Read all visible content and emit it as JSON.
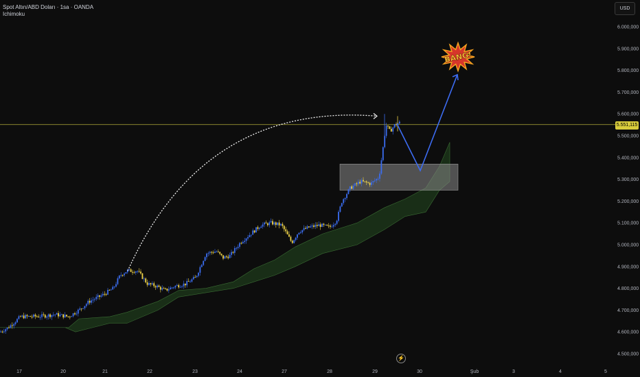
{
  "header": {
    "symbol_line": "Spot Altın/ABD Doları · 1sa · OANDA",
    "indicator": "Ichimoku"
  },
  "currency_button": "USD",
  "price_tag": "5.551,115",
  "clock_icon": "lightning-icon",
  "bang_text": "BANG!",
  "colors": {
    "background": "#0d0d0d",
    "candle_up": "#3b6df0",
    "candle_down": "#f0d54a",
    "cloud_fill": "#1d3a1b",
    "price_line": "#b5ae3a",
    "zone": "#8a8a8a",
    "projection": "#3d6cf2"
  },
  "chart_data": {
    "type": "candlestick",
    "y_axis": {
      "range": [
        4450000,
        6100000
      ],
      "ticks": [
        "6.000,000",
        "5.900,000",
        "5.800,000",
        "5.700,000",
        "5.600,000",
        "5.500,000",
        "5.400,000",
        "5.300,000",
        "5.200,000",
        "5.100,000",
        "5.000,000",
        "4.900,000",
        "4.800,000",
        "4.700,000",
        "4.600,000",
        "4.500,000"
      ]
    },
    "x_axis": {
      "ticks": [
        "17",
        "20",
        "21",
        "22",
        "23",
        "24",
        "27",
        "28",
        "29",
        "30",
        "Şub",
        "3",
        "4",
        "5"
      ]
    },
    "current_price": 5551115,
    "price_path": [
      [
        0,
        4600000
      ],
      [
        12,
        4620000
      ],
      [
        30,
        4670000
      ],
      [
        40,
        4670000
      ],
      [
        60,
        4672000
      ],
      [
        80,
        4680000
      ],
      [
        100,
        4670000
      ],
      [
        115,
        4700000
      ],
      [
        130,
        4740000
      ],
      [
        150,
        4770000
      ],
      [
        165,
        4800000
      ],
      [
        175,
        4860000
      ],
      [
        185,
        4880000
      ],
      [
        200,
        4880000
      ],
      [
        215,
        4820000
      ],
      [
        228,
        4810000
      ],
      [
        240,
        4790000
      ],
      [
        255,
        4810000
      ],
      [
        270,
        4820000
      ],
      [
        285,
        4850000
      ],
      [
        300,
        4960000
      ],
      [
        315,
        4970000
      ],
      [
        325,
        4940000
      ],
      [
        335,
        4950000
      ],
      [
        350,
        5010000
      ],
      [
        365,
        5050000
      ],
      [
        380,
        5090000
      ],
      [
        395,
        5100000
      ],
      [
        410,
        5090000
      ],
      [
        425,
        5010000
      ],
      [
        435,
        5060000
      ],
      [
        450,
        5080000
      ],
      [
        465,
        5090000
      ],
      [
        480,
        5080000
      ],
      [
        490,
        5110000
      ],
      [
        498,
        5200000
      ],
      [
        510,
        5260000
      ],
      [
        525,
        5290000
      ],
      [
        540,
        5280000
      ],
      [
        552,
        5310000
      ],
      [
        558,
        5450000
      ],
      [
        562,
        5550000
      ],
      [
        568,
        5520000
      ],
      [
        575,
        5550000
      ],
      [
        582,
        5560000
      ]
    ],
    "cloud_top": [
      [
        40,
        4620000
      ],
      [
        100,
        4620000
      ],
      [
        115,
        4660000
      ],
      [
        160,
        4670000
      ],
      [
        185,
        4690000
      ],
      [
        230,
        4740000
      ],
      [
        260,
        4790000
      ],
      [
        300,
        4800000
      ],
      [
        340,
        4830000
      ],
      [
        370,
        4890000
      ],
      [
        400,
        4930000
      ],
      [
        430,
        4990000
      ],
      [
        470,
        5050000
      ],
      [
        520,
        5100000
      ],
      [
        560,
        5170000
      ],
      [
        590,
        5210000
      ],
      [
        620,
        5260000
      ],
      [
        640,
        5360000
      ],
      [
        655,
        5470000
      ]
    ],
    "cloud_bottom": [
      [
        40,
        4620000
      ],
      [
        95,
        4620000
      ],
      [
        110,
        4600000
      ],
      [
        160,
        4640000
      ],
      [
        185,
        4640000
      ],
      [
        230,
        4700000
      ],
      [
        260,
        4760000
      ],
      [
        300,
        4780000
      ],
      [
        340,
        4800000
      ],
      [
        370,
        4830000
      ],
      [
        400,
        4860000
      ],
      [
        430,
        4900000
      ],
      [
        470,
        4960000
      ],
      [
        520,
        5000000
      ],
      [
        560,
        5070000
      ],
      [
        590,
        5130000
      ],
      [
        620,
        5150000
      ],
      [
        640,
        5250000
      ],
      [
        655,
        5290000
      ]
    ],
    "projection": [
      [
        578,
        5555000
      ],
      [
        612,
        5340000
      ],
      [
        666,
        5780000
      ]
    ],
    "zone": {
      "y_top": 5370000,
      "y_bottom": 5250000
    },
    "curve_arrow": {
      "from": [
        186,
        4880000
      ],
      "to": [
        549,
        5590000
      ]
    }
  }
}
